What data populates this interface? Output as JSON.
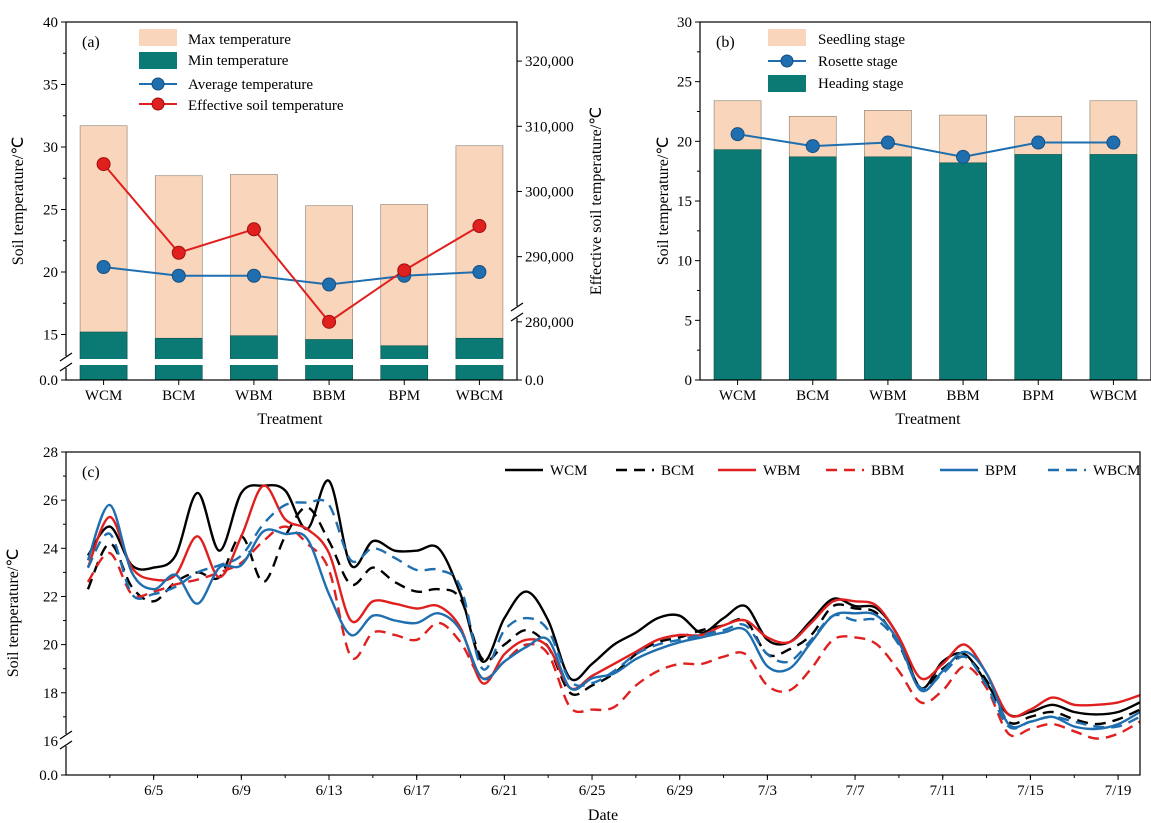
{
  "colors": {
    "max_fill": "#f9d6bb",
    "min_fill": "#0b7a74",
    "seedling_fill": "#f9d6bb",
    "heading_fill": "#0b7a74",
    "avg_line": "#1f6fb0",
    "eff_line": "#e01f1f",
    "WCM": "#000000",
    "BCM": "#000000",
    "WBM": "#e01f1f",
    "BBM": "#e01f1f",
    "BPM": "#1f6fb0",
    "WBCM": "#1f6fb0"
  },
  "chart_data": [
    {
      "panel": "(a)",
      "type": "bar",
      "categories": [
        "WCM",
        "BCM",
        "WBM",
        "BBM",
        "BPM",
        "WBCM"
      ],
      "xlabel": "Treatment",
      "ylabel": "Soil temperature/℃",
      "ylabel_right": "Effective soil temperature/℃",
      "ylim": [
        0,
        40
      ],
      "y_ticks": [
        "0.0",
        "15",
        "20",
        "25",
        "30",
        "35",
        "40"
      ],
      "y_axis_break": [
        0,
        12
      ],
      "y2lim": [
        0,
        326000
      ],
      "y2_ticks": [
        "0.0",
        "280,000",
        "290,000",
        "300,000",
        "310,000",
        "320,000"
      ],
      "y2_axis_break": [
        0,
        272000
      ],
      "legend": [
        "Max temperature",
        "Min temperature",
        "Average temperature",
        "Effective soil temperature"
      ],
      "series": [
        {
          "name": "Max temperature",
          "kind": "bar",
          "values": [
            31.7,
            27.7,
            27.8,
            25.3,
            25.4,
            30.1
          ]
        },
        {
          "name": "Min temperature",
          "kind": "bar",
          "values": [
            15.2,
            14.7,
            14.9,
            14.6,
            14.1,
            14.7
          ]
        },
        {
          "name": "Average temperature",
          "kind": "line",
          "axis": "left",
          "values": [
            20.4,
            19.7,
            19.7,
            19.0,
            19.7,
            20.0
          ]
        },
        {
          "name": "Effective soil temperature",
          "kind": "line",
          "axis": "right",
          "values": [
            304200,
            290600,
            294200,
            280000,
            287900,
            294700
          ]
        }
      ]
    },
    {
      "panel": "(b)",
      "type": "bar",
      "categories": [
        "WCM",
        "BCM",
        "WBM",
        "BBM",
        "BPM",
        "WBCM"
      ],
      "xlabel": "Treatment",
      "ylabel": "Soil temperature/℃",
      "ylim": [
        0,
        30
      ],
      "y_ticks": [
        "0",
        "5",
        "10",
        "15",
        "20",
        "25",
        "30"
      ],
      "legend": [
        "Seedling stage",
        "Rosette stage",
        "Heading stage"
      ],
      "series": [
        {
          "name": "Seedling stage",
          "kind": "bar",
          "values": [
            23.4,
            22.1,
            22.6,
            22.2,
            22.1,
            23.4
          ]
        },
        {
          "name": "Rosette stage",
          "kind": "line",
          "values": [
            20.6,
            19.6,
            19.9,
            18.7,
            19.9,
            19.9
          ]
        },
        {
          "name": "Heading stage",
          "kind": "bar",
          "values": [
            19.3,
            18.7,
            18.7,
            18.2,
            18.9,
            18.9
          ]
        }
      ]
    },
    {
      "panel": "(c)",
      "type": "line",
      "xlabel": "Date",
      "ylabel": "Soil temperature/℃",
      "x_tick_labels": [
        "6/5",
        "6/9",
        "6/13",
        "6/17",
        "6/21",
        "6/25",
        "6/29",
        "7/3",
        "7/7",
        "7/11",
        "7/15",
        "7/19"
      ],
      "x_tick_values": [
        5,
        9,
        13,
        17,
        21,
        25,
        29,
        33,
        37,
        41,
        45,
        49
      ],
      "xlim": [
        1,
        50
      ],
      "ylim": [
        0,
        28
      ],
      "y_ticks": [
        "0.0",
        "16",
        "18",
        "20",
        "22",
        "24",
        "26",
        "28"
      ],
      "y_axis_break": [
        0,
        15
      ],
      "legend": [
        "WCM",
        "BCM",
        "WBM",
        "BBM",
        "BPM",
        "WBCM"
      ],
      "x": [
        2,
        3,
        4,
        5,
        6,
        7,
        8,
        9,
        10,
        11,
        12,
        13,
        14,
        15,
        16,
        17,
        18,
        19,
        20,
        21,
        22,
        23,
        24,
        25,
        26,
        27,
        28,
        29,
        30,
        31,
        32,
        33,
        34,
        35,
        36,
        37,
        38,
        39,
        40,
        41,
        42,
        43,
        44,
        45,
        46,
        47,
        48,
        49,
        50
      ],
      "series": [
        {
          "name": "WCM",
          "dash": "solid",
          "values": [
            23.7,
            24.9,
            23.3,
            23.2,
            23.7,
            26.3,
            23.9,
            26.3,
            26.6,
            26.4,
            24.8,
            26.8,
            23.3,
            24.3,
            23.9,
            23.9,
            24.0,
            22.1,
            19.3,
            21.1,
            22.2,
            21.0,
            18.6,
            19.2,
            20.0,
            20.5,
            21.1,
            21.2,
            20.5,
            21.1,
            21.6,
            20.2,
            20.1,
            21.0,
            21.9,
            21.6,
            21.5,
            20.3,
            18.2,
            19.3,
            19.6,
            18.4,
            17.1,
            17.2,
            17.5,
            17.2,
            17.1,
            17.2,
            17.6
          ]
        },
        {
          "name": "BCM",
          "dash": "dashed",
          "values": [
            22.3,
            24.2,
            22.4,
            21.8,
            22.6,
            23.0,
            22.8,
            24.5,
            22.6,
            24.5,
            25.7,
            24.3,
            22.5,
            23.2,
            22.6,
            22.2,
            22.3,
            21.9,
            19.4,
            20.0,
            20.6,
            19.9,
            18.0,
            18.3,
            18.8,
            19.6,
            20.1,
            20.3,
            20.6,
            20.8,
            21.0,
            19.6,
            19.8,
            20.4,
            21.6,
            21.5,
            21.3,
            20.0,
            18.2,
            19.0,
            19.5,
            18.5,
            16.8,
            17.0,
            17.2,
            16.9,
            16.7,
            16.9,
            17.3
          ]
        },
        {
          "name": "WBM",
          "dash": "solid",
          "values": [
            23.2,
            25.3,
            23.2,
            22.7,
            22.9,
            24.5,
            22.8,
            24.5,
            26.6,
            25.2,
            24.8,
            23.8,
            21.0,
            21.8,
            21.7,
            21.5,
            21.6,
            20.7,
            18.4,
            19.6,
            20.2,
            19.9,
            18.2,
            18.7,
            19.2,
            19.7,
            20.2,
            20.4,
            20.4,
            20.8,
            21.0,
            20.3,
            20.1,
            20.9,
            21.8,
            21.8,
            21.6,
            20.3,
            18.6,
            19.2,
            20.0,
            18.8,
            17.1,
            17.3,
            17.8,
            17.5,
            17.5,
            17.6,
            17.9
          ]
        },
        {
          "name": "BBM",
          "dash": "dashed",
          "values": [
            22.6,
            23.8,
            22.1,
            22.2,
            22.5,
            22.7,
            23.0,
            23.4,
            24.3,
            24.9,
            24.2,
            23.1,
            19.5,
            20.5,
            20.4,
            20.2,
            20.9,
            20.1,
            18.6,
            19.3,
            20.0,
            19.6,
            17.4,
            17.3,
            17.4,
            18.3,
            18.9,
            19.2,
            19.2,
            19.5,
            19.6,
            18.3,
            18.1,
            19.0,
            20.2,
            20.3,
            20.0,
            18.9,
            17.6,
            18.1,
            19.1,
            18.2,
            16.3,
            16.5,
            16.7,
            16.4,
            16.1,
            16.3,
            16.8
          ]
        },
        {
          "name": "BPM",
          "dash": "solid",
          "values": [
            23.5,
            25.8,
            23.0,
            22.3,
            22.9,
            21.7,
            23.2,
            23.3,
            24.7,
            24.6,
            24.4,
            22.1,
            20.4,
            21.2,
            21.0,
            20.9,
            21.3,
            20.6,
            18.6,
            19.3,
            19.9,
            20.2,
            18.2,
            18.6,
            18.8,
            19.4,
            19.8,
            20.1,
            20.3,
            20.5,
            20.6,
            19.1,
            19.0,
            20.1,
            21.2,
            21.3,
            21.2,
            20.1,
            18.1,
            18.9,
            19.7,
            18.8,
            16.7,
            16.8,
            17.0,
            16.6,
            16.5,
            16.7,
            17.2
          ]
        },
        {
          "name": "WBCM",
          "dash": "dashed",
          "values": [
            23.2,
            24.6,
            22.1,
            22.1,
            22.4,
            23.0,
            23.3,
            23.7,
            25.0,
            25.8,
            25.9,
            25.8,
            23.5,
            24.0,
            23.6,
            23.1,
            23.1,
            22.4,
            19.0,
            20.6,
            21.1,
            20.6,
            18.5,
            18.4,
            18.9,
            19.6,
            20.0,
            20.2,
            20.4,
            20.6,
            20.8,
            19.6,
            19.3,
            20.2,
            21.2,
            21.0,
            21.0,
            20.0,
            18.2,
            18.8,
            19.5,
            18.3,
            16.6,
            16.8,
            17.0,
            16.8,
            16.6,
            16.6,
            17.0
          ]
        }
      ]
    }
  ]
}
